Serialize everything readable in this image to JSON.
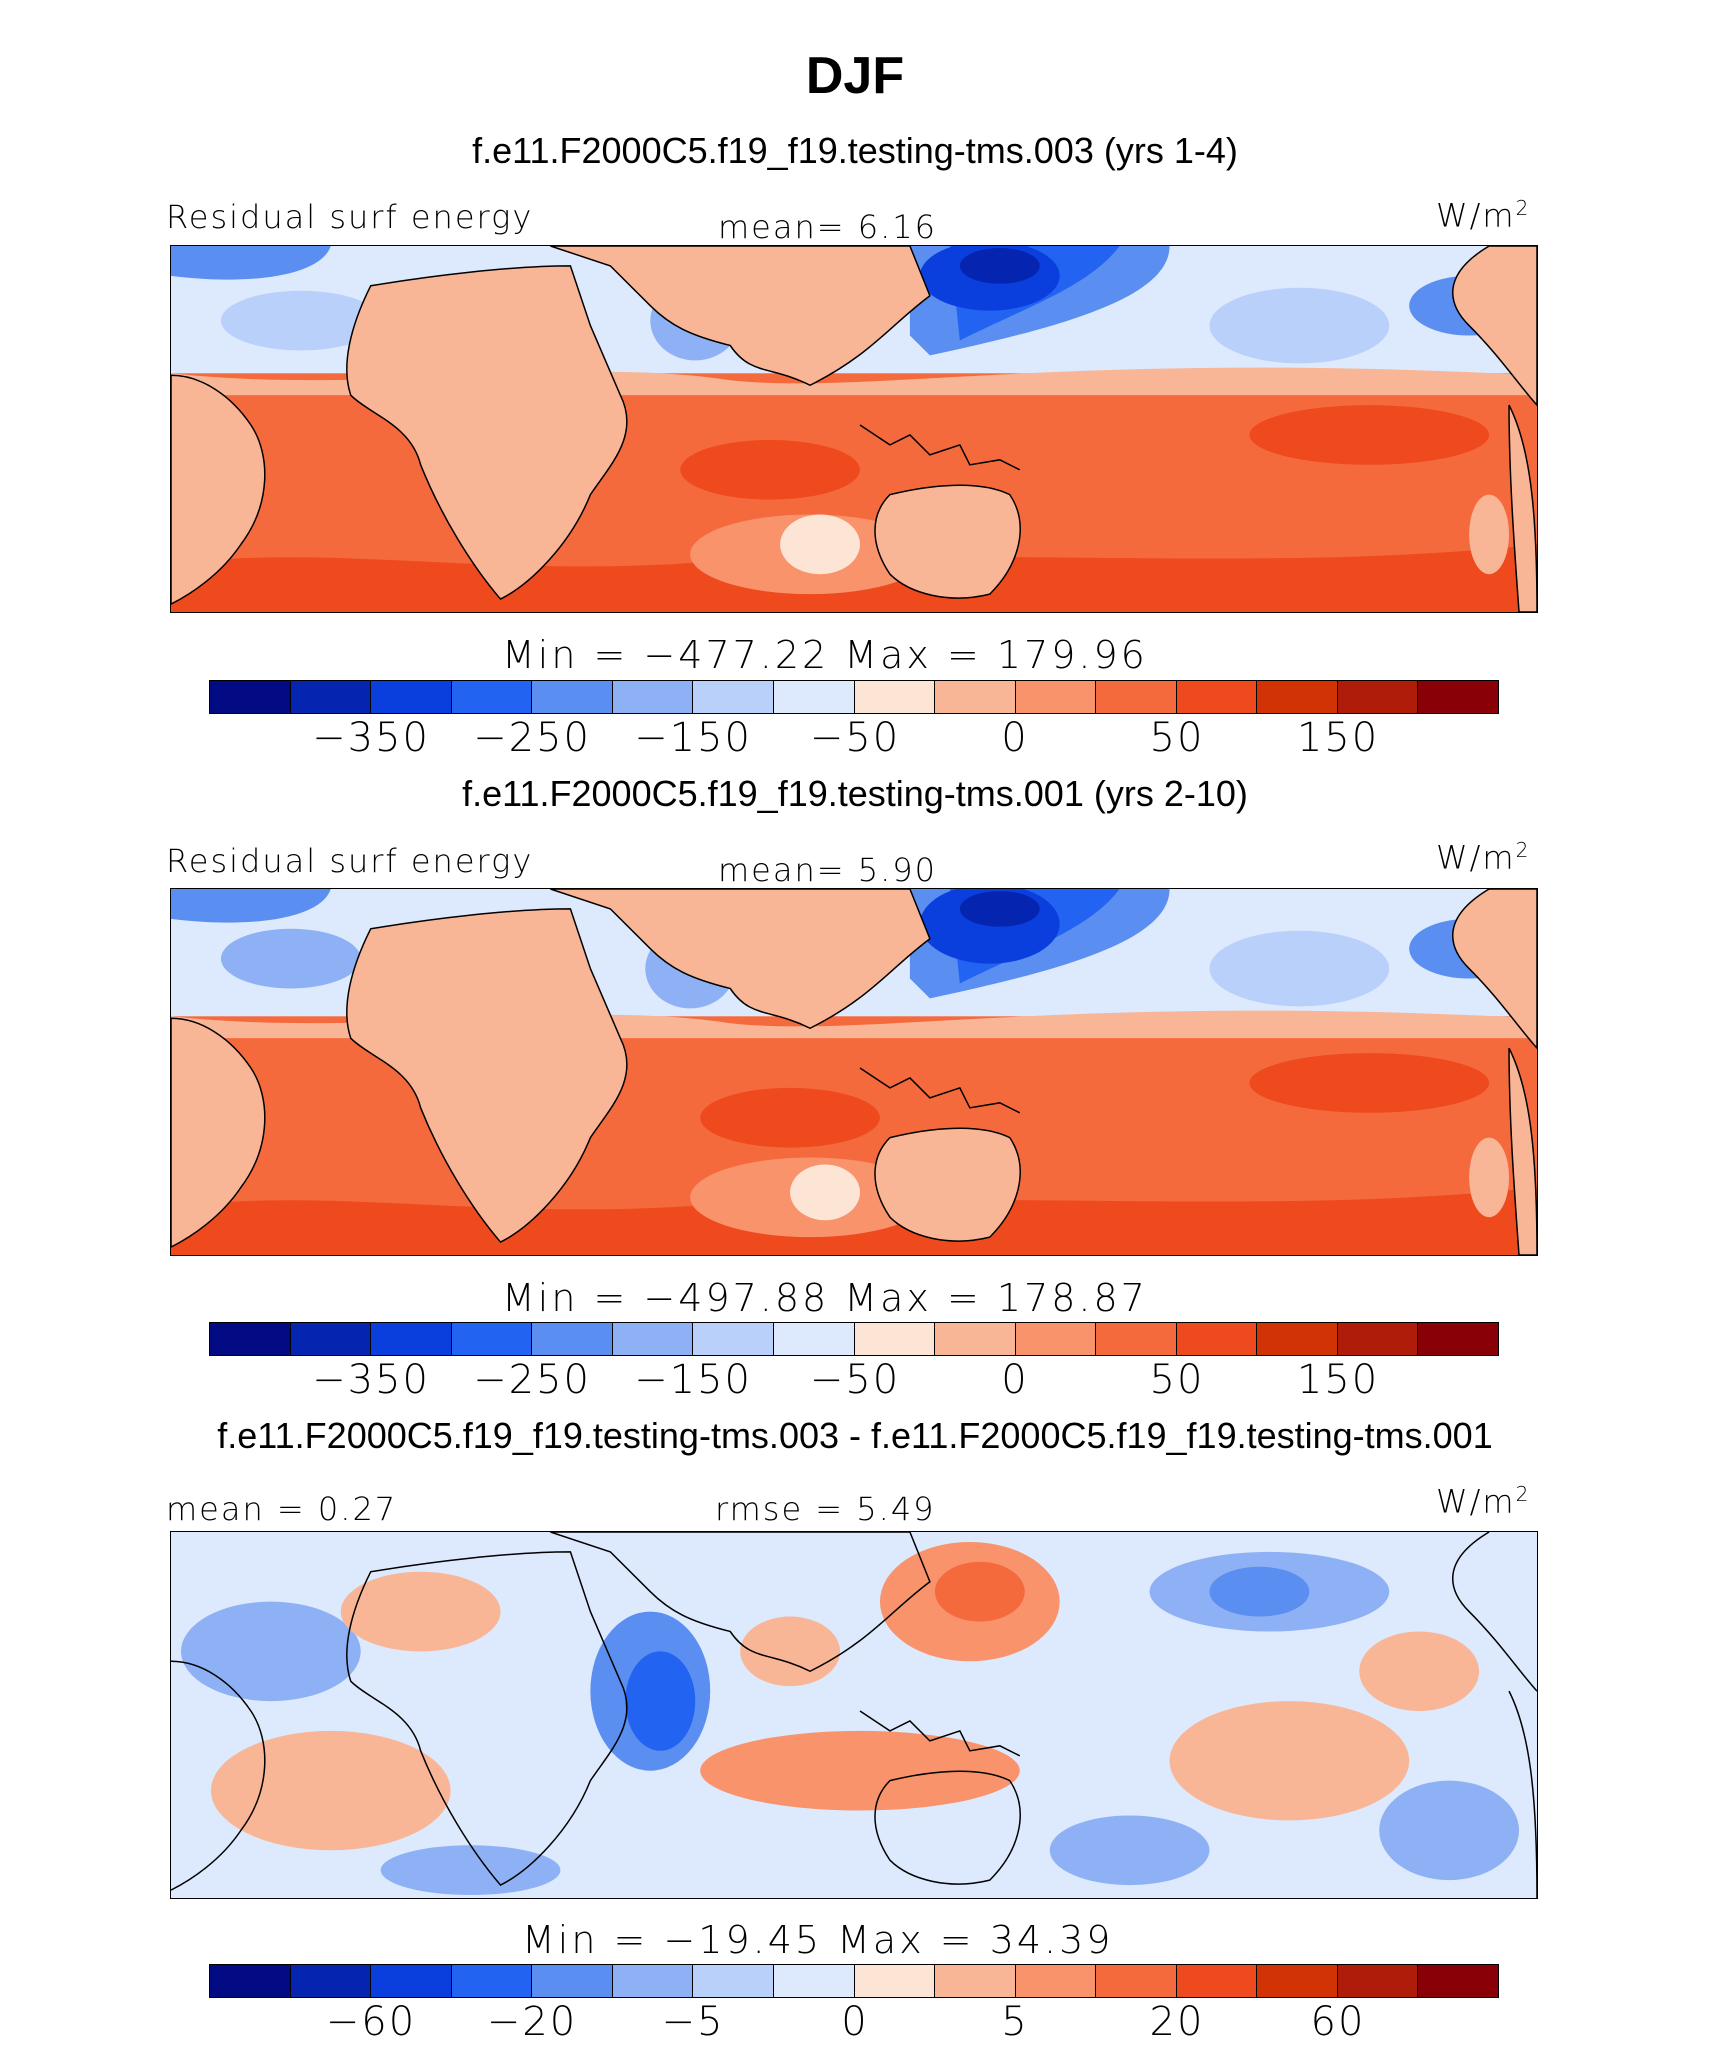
{
  "figure_title": "DJF",
  "units": "W/m",
  "units_exp": "2",
  "colorbar_colors": [
    "#020b84",
    "#0525b0",
    "#0a3fdd",
    "#2363f2",
    "#5a8ef0",
    "#8db1f4",
    "#b9d0fb",
    "#dde9fc",
    "#fde5d5",
    "#f9b697",
    "#f8936c",
    "#f56a3d",
    "#ee4a1d",
    "#d13304",
    "#b01c0a",
    "#8a0007"
  ],
  "panels": [
    {
      "title": "f.e11.F2000C5.f19_f19.testing-tms.003 (yrs 1-4)",
      "left_label": "Residual surf energy",
      "center_label": "mean=   6.16",
      "minmax": "Min = −477.22 Max = 179.96",
      "ticks": [
        "−350",
        "−250",
        "−150",
        "−50",
        "0",
        "50",
        "150"
      ]
    },
    {
      "title": "f.e11.F2000C5.f19_f19.testing-tms.001 (yrs 2-10)",
      "left_label": "Residual surf energy",
      "center_label": "mean=   5.90",
      "minmax": "Min = −497.88 Max = 178.87",
      "ticks": [
        "−350",
        "−250",
        "−150",
        "−50",
        "0",
        "50",
        "150"
      ]
    },
    {
      "title": "f.e11.F2000C5.f19_f19.testing-tms.003 - f.e11.F2000C5.f19_f19.testing-tms.001",
      "left_label": "mean =   0.27",
      "center_label": "rmse =   5.49",
      "minmax": "Min = −19.45 Max =  34.39",
      "ticks": [
        "−60",
        "−20",
        "−5",
        "0",
        "5",
        "20",
        "60"
      ]
    }
  ]
}
